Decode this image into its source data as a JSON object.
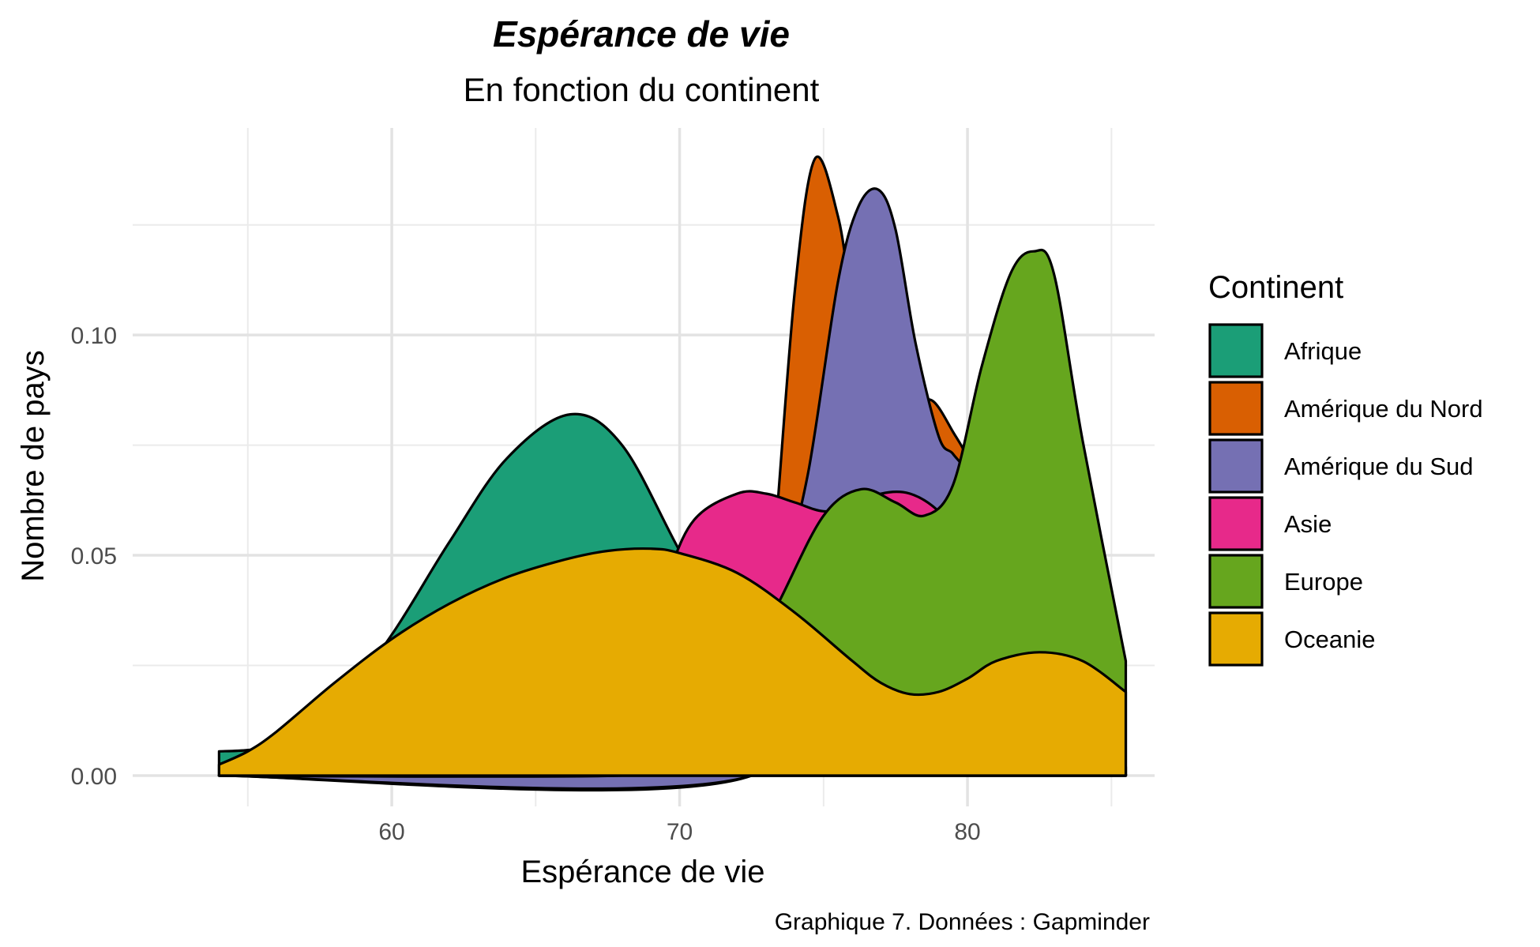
{
  "chart_data": {
    "type": "area",
    "title": "Espérance de vie",
    "subtitle": "En fonction du continent",
    "xlabel": "Espérance de vie",
    "ylabel": "Nombre de pays",
    "caption": "Graphique 7. Données : Gapminder",
    "xlim": [
      51,
      86.5
    ],
    "ylim": [
      -0.007,
      0.147
    ],
    "x_ticks": [
      60,
      70,
      80
    ],
    "x_tick_labels": [
      "60",
      "70",
      "80"
    ],
    "y_ticks": [
      0.0,
      0.05,
      0.1
    ],
    "y_tick_labels": [
      "0.00",
      "0.05",
      "0.10"
    ],
    "grid": true,
    "legend": {
      "title": "Continent",
      "position": "right"
    },
    "stacked": false,
    "series": [
      {
        "name": "Afrique",
        "color": "#1b9e77",
        "x": [
          54,
          55,
          56,
          58,
          60,
          62,
          64,
          66.2,
          68,
          70,
          72,
          74,
          76,
          78,
          80,
          82,
          84,
          85.5
        ],
        "y": [
          0.0055,
          0.0058,
          0.007,
          0.015,
          0.032,
          0.053,
          0.072,
          0.082,
          0.075,
          0.051,
          0.028,
          0.012,
          0.004,
          0.0015,
          0.0006,
          0.0003,
          0.0002,
          0.0002
        ]
      },
      {
        "name": "Amérique du Nord",
        "color": "#d95f02",
        "x": [
          54,
          72.5,
          73.2,
          74,
          74.7,
          75.5,
          76,
          76.8,
          77.5,
          78.2,
          78.8,
          79.5,
          80,
          80.5,
          81,
          82,
          83,
          84,
          85.5
        ],
        "y": [
          0.0,
          0.0,
          0.045,
          0.11,
          0.14,
          0.127,
          0.107,
          0.082,
          0.079,
          0.084,
          0.085,
          0.078,
          0.072,
          0.062,
          0.047,
          0.022,
          0.008,
          0.002,
          0.0003
        ]
      },
      {
        "name": "Amérique du Sud",
        "color": "#7570b3",
        "x": [
          54,
          72.5,
          73.5,
          74.5,
          75.5,
          76.2,
          76.9,
          77.5,
          78.2,
          79,
          79.5,
          80,
          80.5,
          81,
          82,
          83,
          84,
          85.5
        ],
        "y": [
          0.0,
          0.0,
          0.04,
          0.07,
          0.112,
          0.129,
          0.133,
          0.124,
          0.098,
          0.077,
          0.073,
          0.068,
          0.055,
          0.04,
          0.015,
          0.005,
          0.001,
          0.0003
        ]
      },
      {
        "name": "Asie",
        "color": "#e7298a",
        "x": [
          54,
          64,
          66,
          68,
          69.5,
          70.5,
          72,
          73,
          74,
          75,
          76,
          77,
          78,
          79,
          80,
          82,
          84,
          85.5
        ],
        "y": [
          0.0,
          0.0,
          0.003,
          0.018,
          0.044,
          0.058,
          0.064,
          0.064,
          0.062,
          0.06,
          0.061,
          0.064,
          0.064,
          0.06,
          0.052,
          0.02,
          0.006,
          0.002
        ]
      },
      {
        "name": "Europe",
        "color": "#66a61e",
        "x": [
          54,
          68,
          70,
          72,
          73.5,
          75,
          76.3,
          77.5,
          78.5,
          79.5,
          80.5,
          81.5,
          82.3,
          83,
          84,
          85.5
        ],
        "y": [
          0.0,
          0.0,
          0.003,
          0.02,
          0.04,
          0.059,
          0.065,
          0.062,
          0.059,
          0.066,
          0.093,
          0.114,
          0.119,
          0.114,
          0.076,
          0.026
        ]
      },
      {
        "name": "Oceanie",
        "color": "#e6ab02",
        "x": [
          54,
          55,
          56,
          58,
          60,
          62,
          64,
          66,
          67.5,
          69,
          70,
          72,
          74,
          76,
          77,
          78,
          79,
          80,
          81,
          82.5,
          84,
          85.5
        ],
        "y": [
          0.0025,
          0.0055,
          0.01,
          0.021,
          0.031,
          0.039,
          0.045,
          0.049,
          0.051,
          0.0515,
          0.0505,
          0.046,
          0.037,
          0.026,
          0.021,
          0.0185,
          0.019,
          0.022,
          0.026,
          0.028,
          0.026,
          0.019
        ]
      }
    ]
  }
}
